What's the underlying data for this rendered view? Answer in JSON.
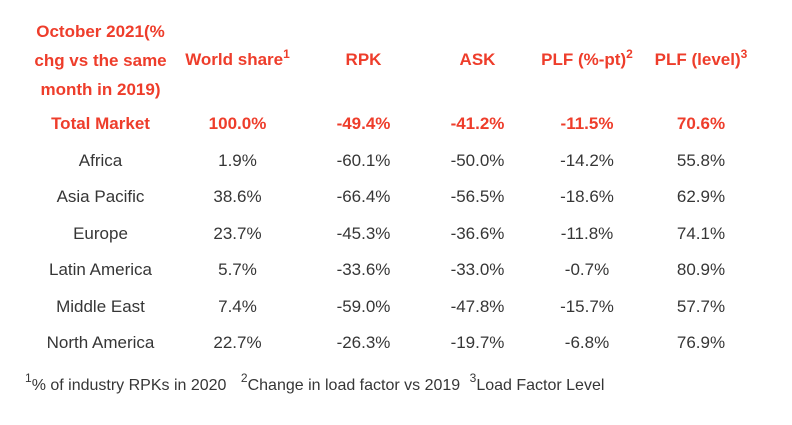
{
  "theme": {
    "accent": "#ee3d2b",
    "text": "#363636",
    "background": "#ffffff"
  },
  "table": {
    "header": {
      "title_lines": [
        "October 2021(%",
        "chg vs the same",
        "month in 2019)"
      ],
      "columns": [
        {
          "label": "World share",
          "superscript": "1"
        },
        {
          "label": "RPK",
          "superscript": ""
        },
        {
          "label": "ASK",
          "superscript": ""
        },
        {
          "label": "PLF (%-pt)",
          "superscript": "2"
        },
        {
          "label": "PLF (level)",
          "superscript": "3"
        }
      ]
    },
    "rows": [
      {
        "region": "Total Market",
        "world_share": "100.0%",
        "rpk": "-49.4%",
        "ask": "-41.2%",
        "plf_pt": "-11.5%",
        "plf_level": "70.6%"
      },
      {
        "region": "Africa",
        "world_share": "1.9%",
        "rpk": "-60.1%",
        "ask": "-50.0%",
        "plf_pt": "-14.2%",
        "plf_level": "55.8%"
      },
      {
        "region": "Asia Pacific",
        "world_share": "38.6%",
        "rpk": "-66.4%",
        "ask": "-56.5%",
        "plf_pt": "-18.6%",
        "plf_level": "62.9%"
      },
      {
        "region": "Europe",
        "world_share": "23.7%",
        "rpk": "-45.3%",
        "ask": "-36.6%",
        "plf_pt": "-11.8%",
        "plf_level": "74.1%"
      },
      {
        "region": "Latin America",
        "world_share": "5.7%",
        "rpk": "-33.6%",
        "ask": "-33.0%",
        "plf_pt": "-0.7%",
        "plf_level": "80.9%"
      },
      {
        "region": "Middle East",
        "world_share": "7.4%",
        "rpk": "-59.0%",
        "ask": "-47.8%",
        "plf_pt": "-15.7%",
        "plf_level": "57.7%"
      },
      {
        "region": "North America",
        "world_share": "22.7%",
        "rpk": "-26.3%",
        "ask": "-19.7%",
        "plf_pt": "-6.8%",
        "plf_level": "76.9%"
      }
    ],
    "footnotes": [
      {
        "marker": "1",
        "text": "% of industry RPKs in 2020"
      },
      {
        "marker": "2",
        "text": "Change in load factor vs 2019"
      },
      {
        "marker": "3",
        "text": "Load Factor Level"
      }
    ]
  },
  "chart_data": {
    "type": "table",
    "title": "October 2021 (% chg vs the same month in 2019)",
    "columns": [
      "Region",
      "World share",
      "RPK",
      "ASK",
      "PLF (%-pt)",
      "PLF (level)"
    ],
    "rows": [
      [
        "Total Market",
        100.0,
        -49.4,
        -41.2,
        -11.5,
        70.6
      ],
      [
        "Africa",
        1.9,
        -60.1,
        -50.0,
        -14.2,
        55.8
      ],
      [
        "Asia Pacific",
        38.6,
        -66.4,
        -56.5,
        -18.6,
        62.9
      ],
      [
        "Europe",
        23.7,
        -45.3,
        -36.6,
        -11.8,
        74.1
      ],
      [
        "Latin America",
        5.7,
        -33.6,
        -33.0,
        -0.7,
        80.9
      ],
      [
        "Middle East",
        7.4,
        -59.0,
        -47.8,
        -15.7,
        57.7
      ],
      [
        "North America",
        22.7,
        -26.3,
        -19.7,
        -6.8,
        76.9
      ]
    ],
    "units": "percent",
    "footnotes": [
      "% of industry RPKs in 2020",
      "Change in load factor vs 2019",
      "Load Factor Level"
    ]
  }
}
